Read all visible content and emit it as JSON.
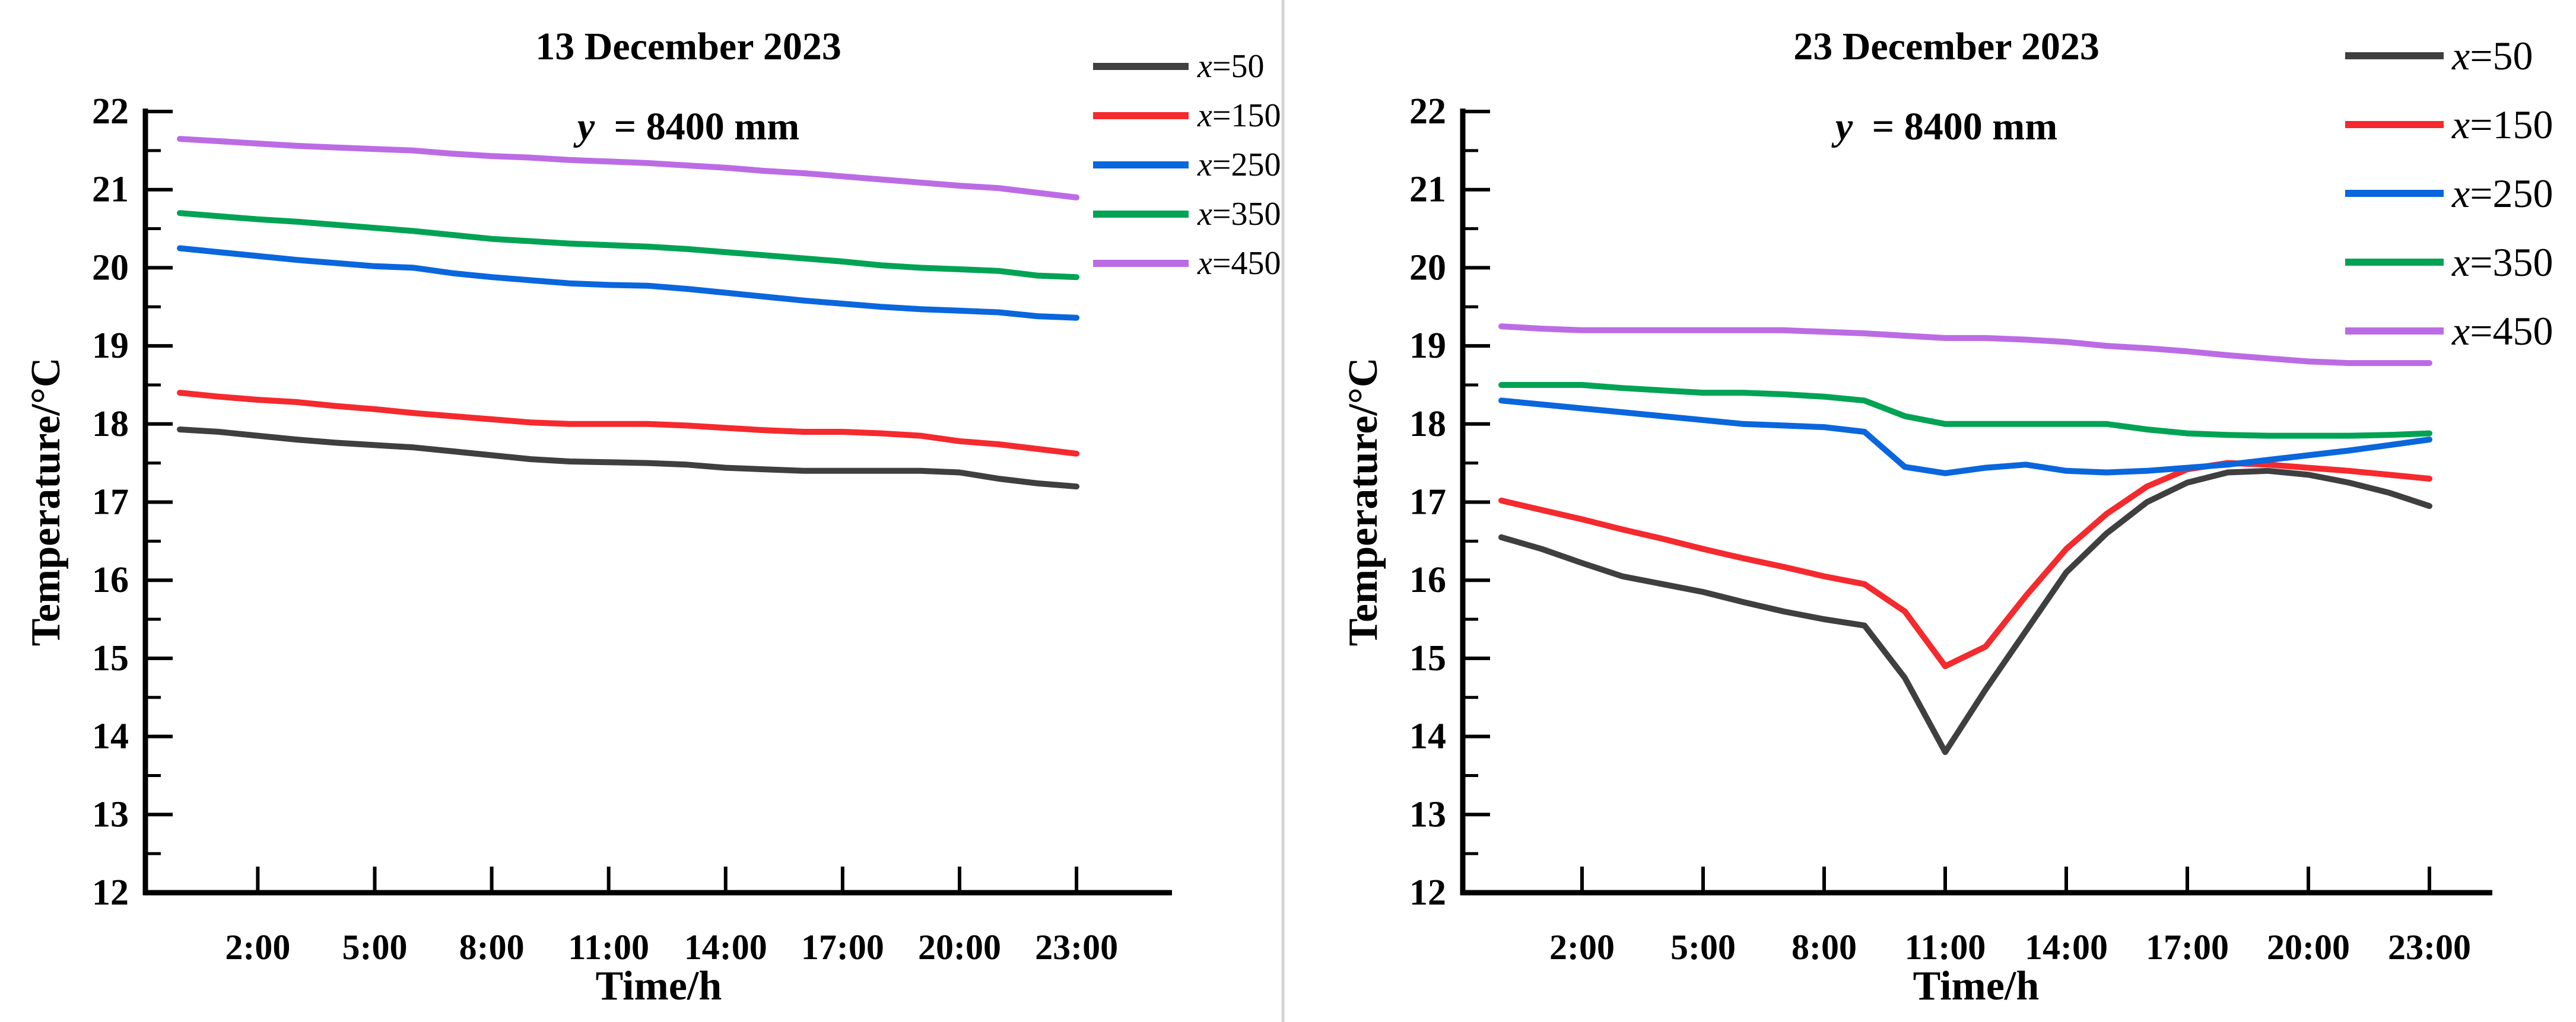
{
  "figure": {
    "background": "#ffffff",
    "divider_color": "#d4d4d4",
    "axis_color": "#000000"
  },
  "chart_data": [
    {
      "type": "line",
      "title_line1": "13 December 2023",
      "title_line2_var": "y",
      "title_line2_rest": "= 8400 mm",
      "xlabel": "Time/h",
      "ylabel": "Temperature/°C",
      "ylim": [
        12,
        22
      ],
      "ytick_labels": [
        "12",
        "13",
        "14",
        "15",
        "16",
        "17",
        "18",
        "19",
        "20",
        "21",
        "22"
      ],
      "ytick_minor_step": 0.5,
      "grid": false,
      "legend_position": "top-right-outside",
      "x_hours": [
        0,
        1,
        2,
        3,
        4,
        5,
        6,
        7,
        8,
        9,
        10,
        11,
        12,
        13,
        14,
        15,
        16,
        17,
        18,
        19,
        20,
        21,
        22,
        23
      ],
      "xticks": [
        {
          "hour": 2,
          "label": "2:00"
        },
        {
          "hour": 5,
          "label": "5:00"
        },
        {
          "hour": 8,
          "label": "8:00"
        },
        {
          "hour": 11,
          "label": "11:00"
        },
        {
          "hour": 14,
          "label": "14:00"
        },
        {
          "hour": 17,
          "label": "17:00"
        },
        {
          "hour": 20,
          "label": "20:00"
        },
        {
          "hour": 23,
          "label": "23:00"
        }
      ],
      "series": [
        {
          "name": "x=50",
          "color": "#3f3f3f",
          "values": [
            17.93,
            17.9,
            17.85,
            17.8,
            17.76,
            17.73,
            17.7,
            17.65,
            17.6,
            17.55,
            17.52,
            17.51,
            17.5,
            17.48,
            17.44,
            17.42,
            17.4,
            17.4,
            17.4,
            17.4,
            17.38,
            17.3,
            17.24,
            17.2
          ]
        },
        {
          "name": "x=150",
          "color": "#f42a2e",
          "values": [
            18.4,
            18.35,
            18.31,
            18.28,
            18.23,
            18.19,
            18.14,
            18.1,
            18.06,
            18.02,
            18.0,
            18.0,
            18.0,
            17.98,
            17.95,
            17.92,
            17.9,
            17.9,
            17.88,
            17.85,
            17.78,
            17.74,
            17.68,
            17.62
          ]
        },
        {
          "name": "x=250",
          "color": "#0a66dc",
          "values": [
            20.25,
            20.2,
            20.15,
            20.1,
            20.06,
            20.02,
            20.0,
            19.93,
            19.88,
            19.84,
            19.8,
            19.78,
            19.77,
            19.73,
            19.68,
            19.63,
            19.58,
            19.54,
            19.5,
            19.47,
            19.45,
            19.43,
            19.38,
            19.36
          ]
        },
        {
          "name": "x=350",
          "color": "#00a354",
          "values": [
            20.7,
            20.66,
            20.62,
            20.59,
            20.55,
            20.51,
            20.47,
            20.42,
            20.37,
            20.34,
            20.31,
            20.29,
            20.27,
            20.24,
            20.2,
            20.16,
            20.12,
            20.08,
            20.03,
            20.0,
            19.98,
            19.96,
            19.9,
            19.88
          ]
        },
        {
          "name": "x=450",
          "color": "#bb6ce4",
          "values": [
            21.65,
            21.62,
            21.59,
            21.56,
            21.54,
            21.52,
            21.5,
            21.46,
            21.43,
            21.41,
            21.38,
            21.36,
            21.34,
            21.31,
            21.28,
            21.24,
            21.21,
            21.17,
            21.13,
            21.09,
            21.05,
            21.02,
            20.96,
            20.9
          ]
        }
      ]
    },
    {
      "type": "line",
      "title_line1": "23 December 2023",
      "title_line2_var": "y",
      "title_line2_rest": "= 8400 mm",
      "xlabel": "Time/h",
      "ylabel": "Temperature/°C",
      "ylim": [
        12,
        22
      ],
      "ytick_labels": [
        "12",
        "13",
        "14",
        "15",
        "16",
        "17",
        "18",
        "19",
        "20",
        "21",
        "22"
      ],
      "ytick_minor_step": 0.5,
      "grid": false,
      "legend_position": "top-right-inside",
      "x_hours": [
        0,
        1,
        2,
        3,
        4,
        5,
        6,
        7,
        8,
        9,
        10,
        11,
        12,
        13,
        14,
        15,
        16,
        17,
        18,
        19,
        20,
        21,
        22,
        23
      ],
      "xticks": [
        {
          "hour": 2,
          "label": "2:00"
        },
        {
          "hour": 5,
          "label": "5:00"
        },
        {
          "hour": 8,
          "label": "8:00"
        },
        {
          "hour": 11,
          "label": "11:00"
        },
        {
          "hour": 14,
          "label": "14:00"
        },
        {
          "hour": 17,
          "label": "17:00"
        },
        {
          "hour": 20,
          "label": "20:00"
        },
        {
          "hour": 23,
          "label": "23:00"
        }
      ],
      "series": [
        {
          "name": "x=50",
          "color": "#3f3f3f",
          "values": [
            16.55,
            16.4,
            16.22,
            16.05,
            15.95,
            15.85,
            15.72,
            15.6,
            15.5,
            15.42,
            14.75,
            13.8,
            14.6,
            15.35,
            16.1,
            16.6,
            17.0,
            17.25,
            17.38,
            17.4,
            17.35,
            17.25,
            17.12,
            16.95
          ]
        },
        {
          "name": "x=150",
          "color": "#f42a2e",
          "values": [
            17.02,
            16.9,
            16.78,
            16.65,
            16.53,
            16.4,
            16.28,
            16.17,
            16.05,
            15.95,
            15.6,
            14.9,
            15.15,
            15.8,
            16.4,
            16.85,
            17.2,
            17.42,
            17.5,
            17.48,
            17.44,
            17.4,
            17.35,
            17.3
          ]
        },
        {
          "name": "x=250",
          "color": "#0a66dc",
          "values": [
            18.3,
            18.25,
            18.2,
            18.15,
            18.1,
            18.05,
            18.0,
            17.98,
            17.96,
            17.9,
            17.45,
            17.37,
            17.44,
            17.48,
            17.4,
            17.38,
            17.4,
            17.44,
            17.48,
            17.54,
            17.6,
            17.66,
            17.73,
            17.8
          ]
        },
        {
          "name": "x=350",
          "color": "#00a354",
          "values": [
            18.5,
            18.5,
            18.5,
            18.46,
            18.43,
            18.4,
            18.4,
            18.38,
            18.35,
            18.3,
            18.1,
            18.0,
            18.0,
            18.0,
            18.0,
            18.0,
            17.93,
            17.88,
            17.86,
            17.85,
            17.85,
            17.85,
            17.86,
            17.88
          ]
        },
        {
          "name": "x=450",
          "color": "#bb6ce4",
          "values": [
            19.25,
            19.22,
            19.2,
            19.2,
            19.2,
            19.2,
            19.2,
            19.2,
            19.18,
            19.16,
            19.13,
            19.1,
            19.1,
            19.08,
            19.05,
            19.0,
            18.97,
            18.93,
            18.88,
            18.84,
            18.8,
            18.78,
            18.78,
            18.78
          ]
        }
      ]
    }
  ]
}
